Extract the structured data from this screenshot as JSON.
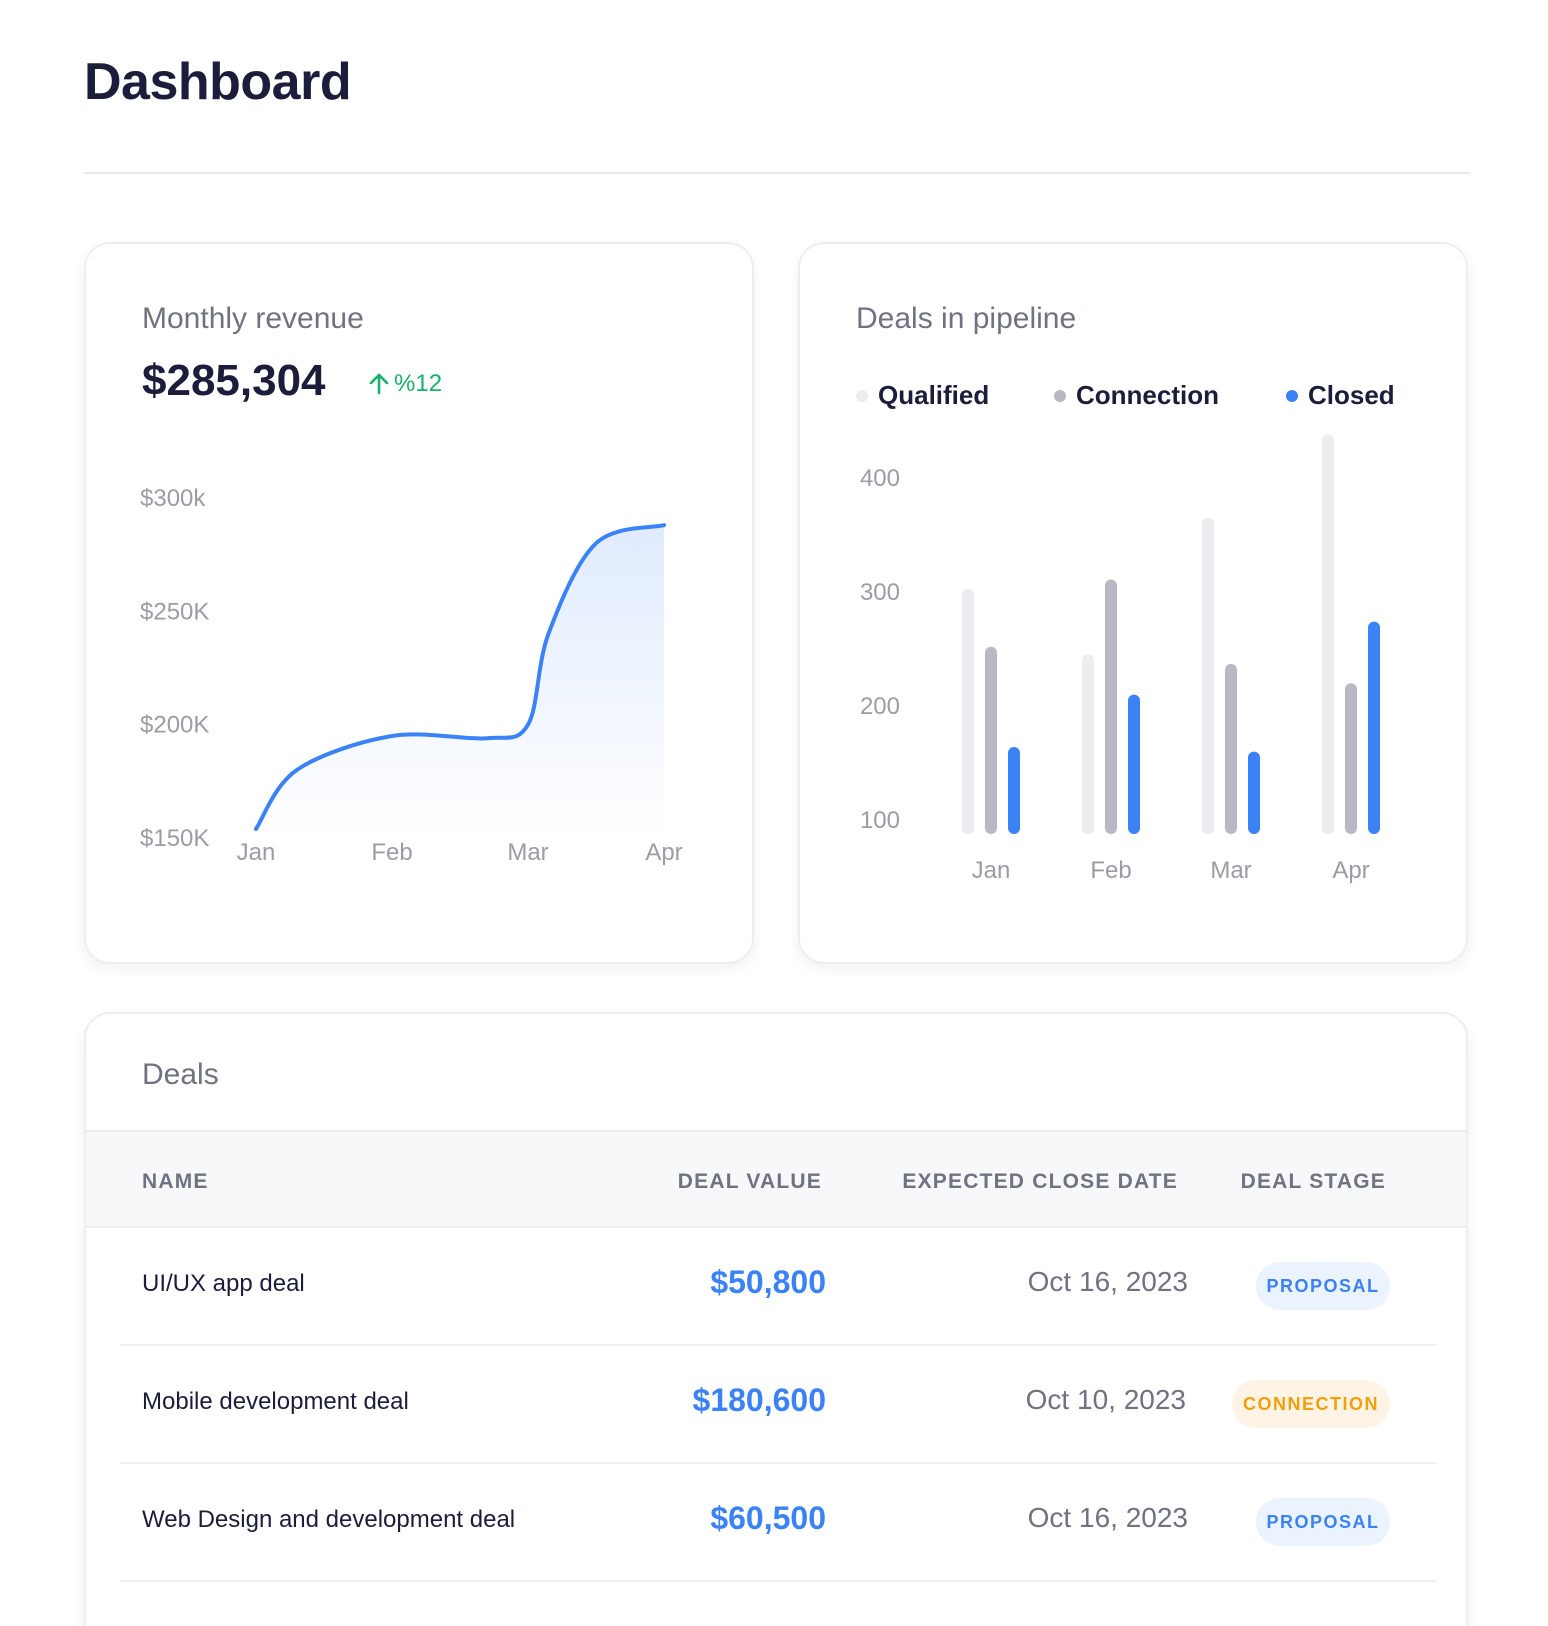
{
  "header": {
    "title": "Dashboard"
  },
  "revenue": {
    "label": "Monthly revenue",
    "value": "$285,304",
    "change": "%12",
    "change_icon": "arrow-up-icon",
    "accent": "#3b82f6",
    "change_color": "#17b26a"
  },
  "pipeline": {
    "label": "Deals in pipeline",
    "legend": [
      {
        "name": "Qualified",
        "color": "#ececf0"
      },
      {
        "name": "Connection",
        "color": "#b9b8c3"
      },
      {
        "name": "Closed",
        "color": "#3b82f6"
      }
    ]
  },
  "chart_data": [
    {
      "type": "area",
      "categories": [
        "Jan",
        "Feb",
        "Mar",
        "Apr"
      ],
      "y_ticks": [
        "$150K",
        "$200K",
        "$250K",
        "$300k"
      ],
      "ylim": [
        150,
        300
      ],
      "series": [
        {
          "x": [
            0,
            0.3,
            1,
            1.7,
            2,
            2.15,
            2.5,
            3
          ],
          "values": [
            154,
            180,
            195,
            194,
            200,
            240,
            280,
            288
          ]
        }
      ],
      "title": "",
      "xlabel": "",
      "ylabel": "",
      "grid": false,
      "legend": "none"
    },
    {
      "type": "bar",
      "categories": [
        "Jan",
        "Feb",
        "Mar",
        "Apr"
      ],
      "y_ticks": [
        "100",
        "200",
        "300",
        "400"
      ],
      "ylim": [
        100,
        400
      ],
      "series": [
        {
          "name": "Qualified",
          "values": [
            303,
            245,
            365,
            438
          ]
        },
        {
          "name": "Connection",
          "values": [
            252,
            311,
            237,
            220
          ]
        },
        {
          "name": "Closed",
          "values": [
            164,
            210,
            160,
            274
          ]
        }
      ],
      "title": "",
      "xlabel": "",
      "ylabel": "",
      "grid": false,
      "legend": "top"
    }
  ],
  "deals": {
    "title": "Deals",
    "columns": {
      "name": "NAME",
      "value": "DEAL VALUE",
      "date": "EXPECTED CLOSE DATE",
      "stage": "DEAL STAGE"
    },
    "rows": [
      {
        "name": "UI/UX app deal",
        "value": "$50,800",
        "date": "Oct 16, 2023",
        "stage": "PROPOSAL",
        "stage_type": "proposal"
      },
      {
        "name": "Mobile development deal",
        "value": "$180,600",
        "date": "Oct 10, 2023",
        "stage": "CONNECTION",
        "stage_type": "connection"
      },
      {
        "name": "Web Design and development deal",
        "value": "$60,500",
        "date": "Oct 16, 2023",
        "stage": "PROPOSAL",
        "stage_type": "proposal"
      }
    ]
  }
}
